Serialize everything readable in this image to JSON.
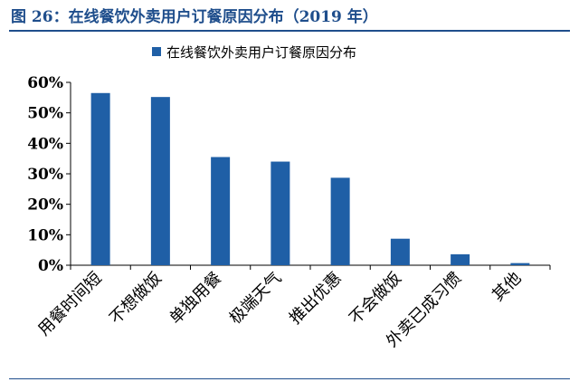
{
  "header": {
    "title": "图 26：在线餐饮外卖用户订餐原因分布（2019 年）"
  },
  "legend": {
    "label": "在线餐饮外卖用户订餐原因分布"
  },
  "colors": {
    "bar": "#1f5fa6",
    "title": "#1f4e8c",
    "axis": "#000000"
  },
  "chart_data": {
    "type": "bar",
    "categories": [
      "用餐时间短",
      "不想做饭",
      "单独用餐",
      "极端天气",
      "推出优惠",
      "不会做饭",
      "外卖已成习惯",
      "其他"
    ],
    "series": [
      {
        "name": "在线餐饮外卖用户订餐原因分布",
        "values": [
          56.5,
          55.2,
          35.5,
          34.0,
          28.7,
          8.7,
          3.6,
          0.7
        ]
      }
    ],
    "ylim": [
      0,
      60
    ],
    "yticks": [
      0,
      10,
      20,
      30,
      40,
      50,
      60
    ],
    "ytick_labels": [
      "0%",
      "10%",
      "20%",
      "30%",
      "40%",
      "50%",
      "60%"
    ],
    "unit": "%",
    "grid": false,
    "legend_position": "top"
  }
}
